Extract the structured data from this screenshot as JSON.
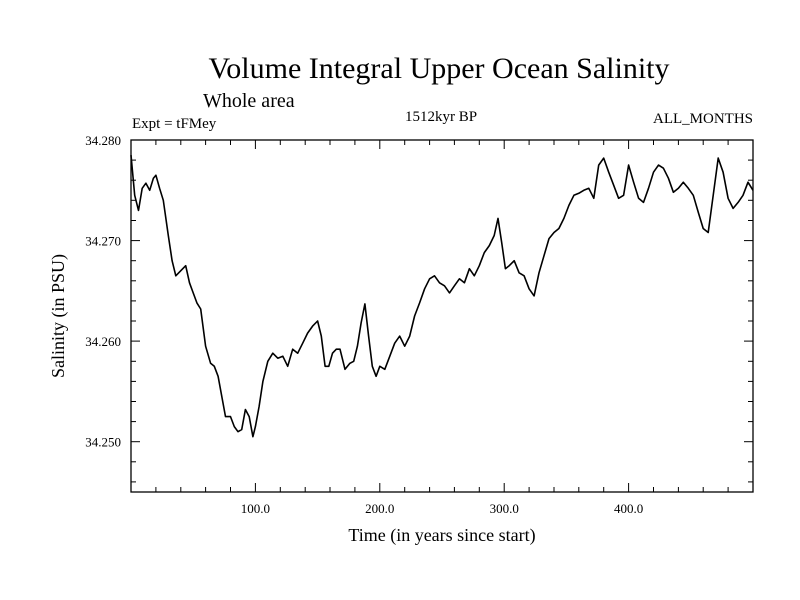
{
  "chart_data": {
    "type": "line",
    "title": "Volume Integral Upper Ocean Salinity",
    "subtitle": "Whole area",
    "experiment_label": "Expt = tFMey",
    "period_label": "1512kyr BP",
    "months_label": "ALL_MONTHS",
    "xlabel": "Time (in years since start)",
    "ylabel": "Salinity (in PSU)",
    "xlim": [
      0,
      500
    ],
    "ylim": [
      34.245,
      34.28
    ],
    "grid": false,
    "x_ticks": [
      100,
      200,
      300,
      400
    ],
    "x_tick_labels": [
      "100.0",
      "200.0",
      "300.0",
      "400.0"
    ],
    "y_ticks": [
      34.25,
      34.26,
      34.27,
      34.28
    ],
    "y_tick_labels": [
      "34.250",
      "34.260",
      "34.270",
      "34.280"
    ],
    "series": [
      {
        "name": "Salinity",
        "color": "#000000",
        "x": [
          0,
          3,
          6,
          9,
          12,
          15,
          18,
          20,
          23,
          26,
          30,
          33,
          36,
          40,
          44,
          47,
          50,
          53,
          56,
          60,
          64,
          67,
          70,
          73,
          76,
          80,
          83,
          86,
          89,
          92,
          95,
          98,
          100,
          103,
          106,
          110,
          114,
          118,
          122,
          126,
          130,
          134,
          138,
          142,
          146,
          150,
          153,
          156,
          159,
          162,
          165,
          168,
          172,
          176,
          179,
          182,
          185,
          188,
          191,
          194,
          197,
          200,
          204,
          208,
          212,
          216,
          220,
          224,
          228,
          232,
          236,
          240,
          244,
          248,
          252,
          256,
          260,
          264,
          268,
          272,
          276,
          280,
          284,
          288,
          292,
          295,
          298,
          301,
          304,
          308,
          312,
          316,
          320,
          324,
          328,
          332,
          336,
          340,
          344,
          348,
          352,
          356,
          360,
          364,
          368,
          372,
          376,
          380,
          384,
          388,
          392,
          396,
          400,
          404,
          408,
          412,
          416,
          420,
          424,
          428,
          432,
          436,
          440,
          444,
          448,
          452,
          456,
          460,
          464,
          468,
          472,
          476,
          480,
          484,
          488,
          492,
          496,
          500
        ],
        "values": [
          34.2785,
          34.2745,
          34.273,
          34.2752,
          34.2757,
          34.275,
          34.2762,
          34.2765,
          34.2752,
          34.274,
          34.2705,
          34.268,
          34.2665,
          34.267,
          34.2675,
          34.2658,
          34.2648,
          34.2638,
          34.2632,
          34.2595,
          34.2578,
          34.2575,
          34.2565,
          34.2545,
          34.2525,
          34.2525,
          34.2515,
          34.251,
          34.2512,
          34.2532,
          34.2525,
          34.2505,
          34.2515,
          34.2535,
          34.256,
          34.258,
          34.2588,
          34.2583,
          34.2585,
          34.2575,
          34.2592,
          34.2588,
          34.2598,
          34.2608,
          34.2615,
          34.262,
          34.2605,
          34.2575,
          34.2575,
          34.2588,
          34.2592,
          34.2592,
          34.2572,
          34.2578,
          34.258,
          34.2595,
          34.2618,
          34.2637,
          34.2605,
          34.2575,
          34.2565,
          34.2575,
          34.2572,
          34.2585,
          34.2598,
          34.2605,
          34.2595,
          34.2605,
          34.2625,
          34.2638,
          34.2652,
          34.2662,
          34.2665,
          34.2658,
          34.2655,
          34.2648,
          34.2655,
          34.2662,
          34.2658,
          34.2672,
          34.2665,
          34.2675,
          34.2688,
          34.2695,
          34.2705,
          34.2722,
          34.2698,
          34.2672,
          34.2675,
          34.268,
          34.2668,
          34.2665,
          34.2652,
          34.2645,
          34.2668,
          34.2685,
          34.2702,
          34.2708,
          34.2712,
          34.2722,
          34.2735,
          34.2745,
          34.2747,
          34.275,
          34.2752,
          34.2742,
          34.2775,
          34.2782,
          34.2768,
          34.2755,
          34.2742,
          34.2745,
          34.2775,
          34.2758,
          34.2742,
          34.2738,
          34.2752,
          34.2768,
          34.2775,
          34.2772,
          34.2762,
          34.2748,
          34.2752,
          34.2758,
          34.2752,
          34.2745,
          34.2728,
          34.2712,
          34.2708,
          34.2745,
          34.2782,
          34.2768,
          34.2742,
          34.2732,
          34.2738,
          34.2745,
          34.2758,
          34.275
        ]
      }
    ]
  }
}
